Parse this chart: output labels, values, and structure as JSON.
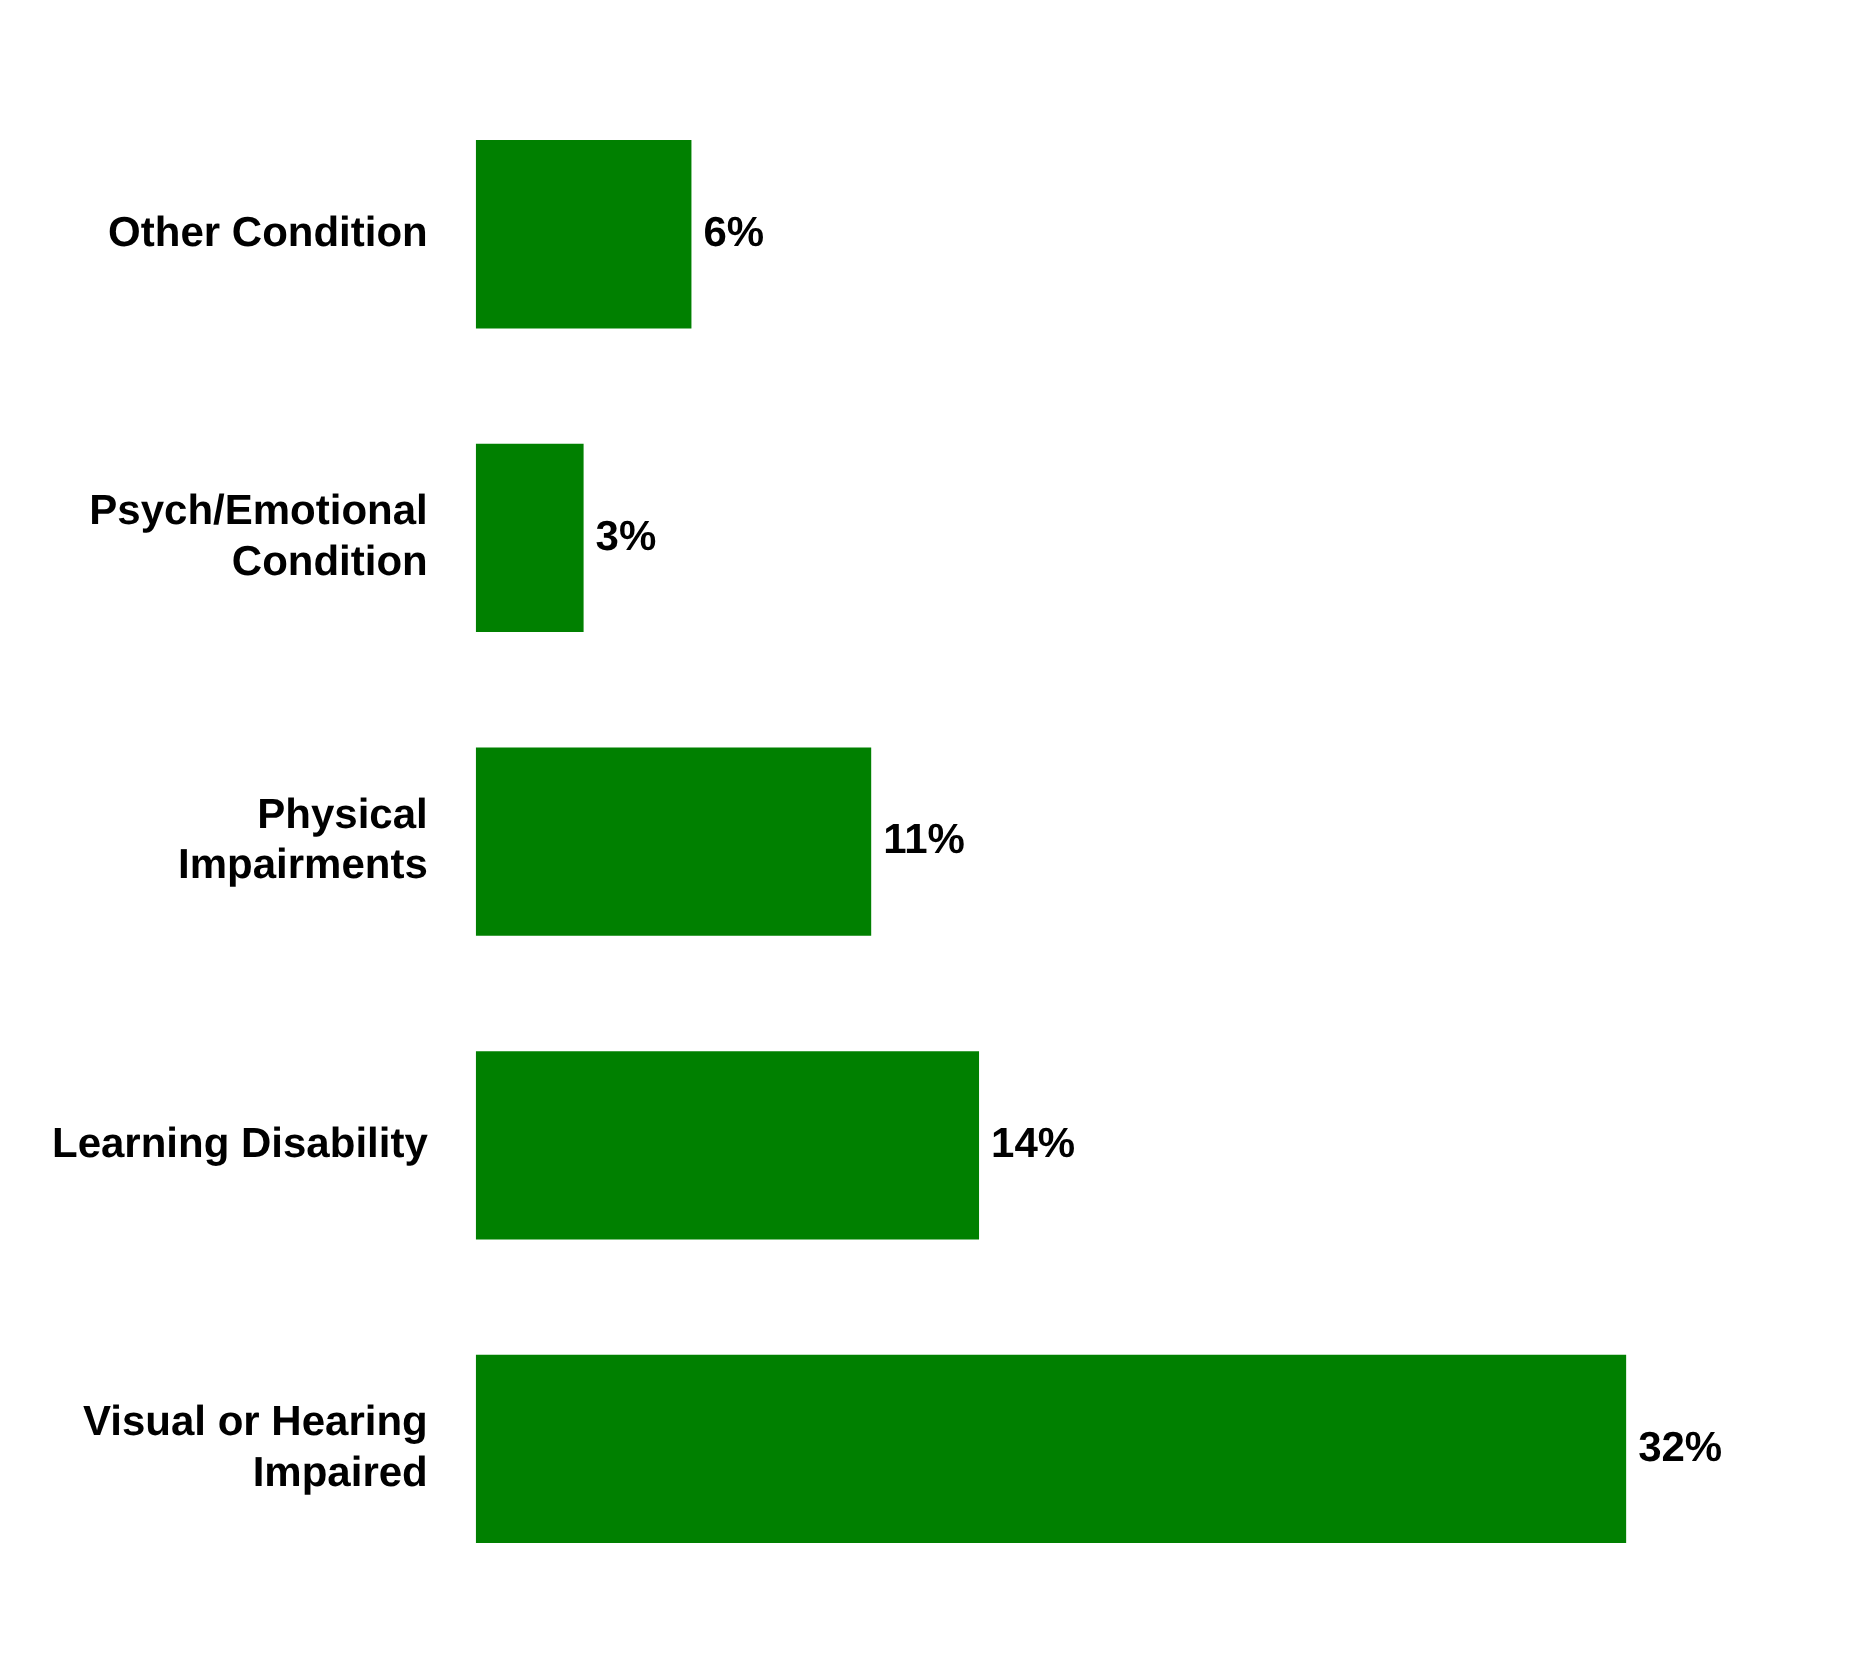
{
  "chart_data": {
    "type": "bar",
    "orientation": "horizontal",
    "categories": [
      "Other Condition",
      "Psych/Emotional Condition",
      "Physical Impairments",
      "Learning Disability",
      "Visual or Hearing Impaired"
    ],
    "values": [
      6,
      3,
      11,
      14,
      32
    ],
    "value_labels": [
      "6%",
      "3%",
      "11%",
      "14%",
      "32%"
    ],
    "color": "#008000"
  }
}
